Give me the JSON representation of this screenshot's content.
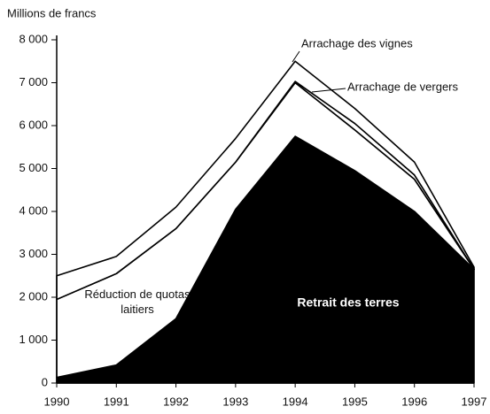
{
  "chart_data": {
    "type": "stacked_area",
    "y_label": "Millions de francs",
    "categories": [
      "1990",
      "1991",
      "1992",
      "1993",
      "1994",
      "1995",
      "1996",
      "1997"
    ],
    "series": [
      {
        "name": "Retrait des terres",
        "color": "#000000",
        "values": [
          130,
          420,
          1500,
          4050,
          5750,
          4950,
          4000,
          2650
        ]
      },
      {
        "name": "Réduction de quotas laitiers",
        "color": "#ffffff",
        "values": [
          1820,
          2130,
          2100,
          1100,
          1250,
          950,
          750,
          0
        ]
      },
      {
        "name": "Arrachage de vergers",
        "color": "#ffffff",
        "values": [
          0,
          0,
          0,
          0,
          30,
          150,
          100,
          0
        ]
      },
      {
        "name": "Arrachage des vignes",
        "color": "#ffffff",
        "values": [
          550,
          400,
          500,
          550,
          470,
          350,
          300,
          50
        ]
      }
    ],
    "ylim": [
      0,
      8000
    ],
    "yticks": [
      0,
      {
        "value": 1000,
        "label": "1 000"
      },
      {
        "value": 2000,
        "label": "2 000"
      },
      {
        "value": 3000,
        "label": "3 000"
      },
      {
        "value": 4000,
        "label": "4 000"
      },
      {
        "value": 5000,
        "label": "5 000"
      },
      {
        "value": 6000,
        "label": "6 000"
      },
      {
        "value": 7000,
        "label": "7 000"
      },
      {
        "value": 8000,
        "label": "8 000"
      }
    ]
  }
}
